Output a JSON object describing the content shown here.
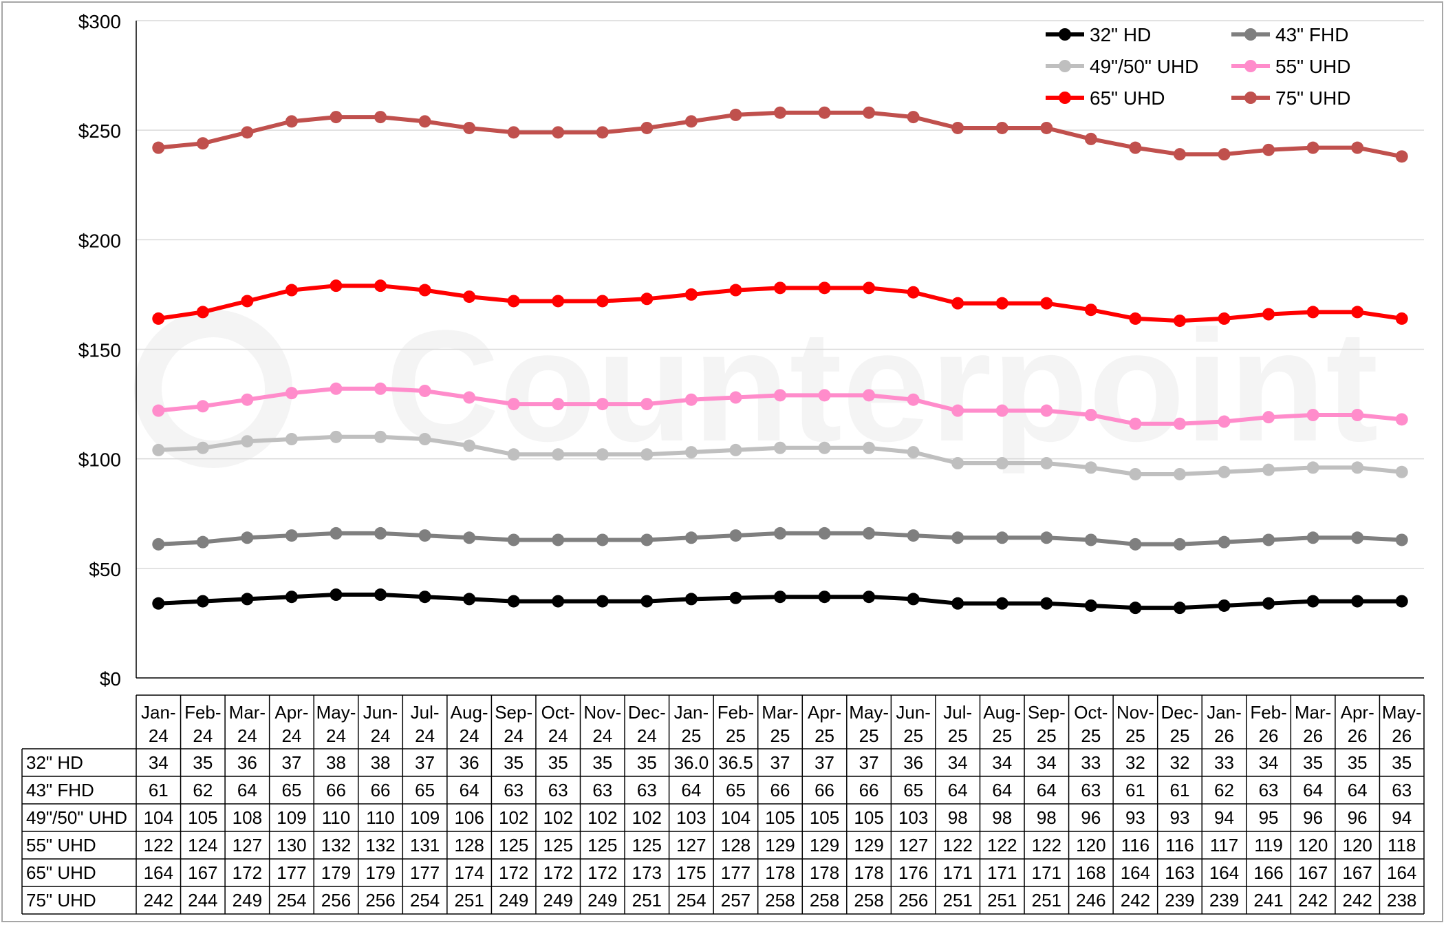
{
  "chart_data": {
    "type": "line",
    "title": "",
    "xlabel": "",
    "ylabel": "",
    "ylim": [
      0,
      300
    ],
    "y_ticks": [
      "$0",
      "$50",
      "$100",
      "$150",
      "$200",
      "$250",
      "$300"
    ],
    "y_tick_values": [
      0,
      50,
      100,
      150,
      200,
      250,
      300
    ],
    "grid": "horizontal",
    "legend_position": "top-right",
    "watermark": "Counterpoint",
    "categories": [
      [
        "Jan-",
        "24"
      ],
      [
        "Feb-",
        "24"
      ],
      [
        "Mar-",
        "24"
      ],
      [
        "Apr-",
        "24"
      ],
      [
        "May-",
        "24"
      ],
      [
        "Jun-",
        "24"
      ],
      [
        "Jul-",
        "24"
      ],
      [
        "Aug-",
        "24"
      ],
      [
        "Sep-",
        "24"
      ],
      [
        "Oct-",
        "24"
      ],
      [
        "Nov-",
        "24"
      ],
      [
        "Dec-",
        "24"
      ],
      [
        "Jan-",
        "25"
      ],
      [
        "Feb-",
        "25"
      ],
      [
        "Mar-",
        "25"
      ],
      [
        "Apr-",
        "25"
      ],
      [
        "May-",
        "25"
      ],
      [
        "Jun-",
        "25"
      ],
      [
        "Jul-",
        "25"
      ],
      [
        "Aug-",
        "25"
      ],
      [
        "Sep-",
        "25"
      ],
      [
        "Oct-",
        "25"
      ],
      [
        "Nov-",
        "25"
      ],
      [
        "Dec-",
        "25"
      ],
      [
        "Jan-",
        "26"
      ],
      [
        "Feb-",
        "26"
      ],
      [
        "Mar-",
        "26"
      ],
      [
        "Apr-",
        "26"
      ],
      [
        "May-",
        "26"
      ]
    ],
    "series": [
      {
        "name": "32\" HD",
        "color": "#000000",
        "values": [
          34,
          35,
          36,
          37,
          38,
          38,
          37,
          36,
          35,
          35,
          35,
          35,
          36,
          36.5,
          37,
          37,
          37,
          36,
          34,
          34,
          34,
          33,
          32,
          32,
          33,
          34,
          35,
          35,
          35
        ],
        "labels": [
          "34",
          "35",
          "36",
          "37",
          "38",
          "38",
          "37",
          "36",
          "35",
          "35",
          "35",
          "35",
          "36.0",
          "36.5",
          "37",
          "37",
          "37",
          "36",
          "34",
          "34",
          "34",
          "33",
          "32",
          "32",
          "33",
          "34",
          "35",
          "35",
          "35"
        ]
      },
      {
        "name": "43\" FHD",
        "color": "#7f7f7f",
        "values": [
          61,
          62,
          64,
          65,
          66,
          66,
          65,
          64,
          63,
          63,
          63,
          63,
          64,
          65,
          66,
          66,
          66,
          65,
          64,
          64,
          64,
          63,
          61,
          61,
          62,
          63,
          64,
          64,
          63
        ],
        "labels": [
          "61",
          "62",
          "64",
          "65",
          "66",
          "66",
          "65",
          "64",
          "63",
          "63",
          "63",
          "63",
          "64",
          "65",
          "66",
          "66",
          "66",
          "65",
          "64",
          "64",
          "64",
          "63",
          "61",
          "61",
          "62",
          "63",
          "64",
          "64",
          "63"
        ]
      },
      {
        "name": "49\"/50\" UHD",
        "color": "#bfbfbf",
        "values": [
          104,
          105,
          108,
          109,
          110,
          110,
          109,
          106,
          102,
          102,
          102,
          102,
          103,
          104,
          105,
          105,
          105,
          103,
          98,
          98,
          98,
          96,
          93,
          93,
          94,
          95,
          96,
          96,
          94
        ],
        "labels": [
          "104",
          "105",
          "108",
          "109",
          "110",
          "110",
          "109",
          "106",
          "102",
          "102",
          "102",
          "102",
          "103",
          "104",
          "105",
          "105",
          "105",
          "103",
          "98",
          "98",
          "98",
          "96",
          "93",
          "93",
          "94",
          "95",
          "96",
          "96",
          "94"
        ]
      },
      {
        "name": "55\" UHD",
        "color": "#ff8ccb",
        "values": [
          122,
          124,
          127,
          130,
          132,
          132,
          131,
          128,
          125,
          125,
          125,
          125,
          127,
          128,
          129,
          129,
          129,
          127,
          122,
          122,
          122,
          120,
          116,
          116,
          117,
          119,
          120,
          120,
          118
        ],
        "labels": [
          "122",
          "124",
          "127",
          "130",
          "132",
          "132",
          "131",
          "128",
          "125",
          "125",
          "125",
          "125",
          "127",
          "128",
          "129",
          "129",
          "129",
          "127",
          "122",
          "122",
          "122",
          "120",
          "116",
          "116",
          "117",
          "119",
          "120",
          "120",
          "118"
        ]
      },
      {
        "name": "65\" UHD",
        "color": "#ff0000",
        "values": [
          164,
          167,
          172,
          177,
          179,
          179,
          177,
          174,
          172,
          172,
          172,
          173,
          175,
          177,
          178,
          178,
          178,
          176,
          171,
          171,
          171,
          168,
          164,
          163,
          164,
          166,
          167,
          167,
          164
        ],
        "labels": [
          "164",
          "167",
          "172",
          "177",
          "179",
          "179",
          "177",
          "174",
          "172",
          "172",
          "172",
          "173",
          "175",
          "177",
          "178",
          "178",
          "178",
          "176",
          "171",
          "171",
          "171",
          "168",
          "164",
          "163",
          "164",
          "166",
          "167",
          "167",
          "164"
        ]
      },
      {
        "name": "75\" UHD",
        "color": "#c0504d",
        "values": [
          242,
          244,
          249,
          254,
          256,
          256,
          254,
          251,
          249,
          249,
          249,
          251,
          254,
          257,
          258,
          258,
          258,
          256,
          251,
          251,
          251,
          246,
          242,
          239,
          239,
          241,
          242,
          242,
          238
        ],
        "labels": [
          "242",
          "244",
          "249",
          "254",
          "256",
          "256",
          "254",
          "251",
          "249",
          "249",
          "249",
          "251",
          "254",
          "257",
          "258",
          "258",
          "258",
          "256",
          "251",
          "251",
          "251",
          "246",
          "242",
          "239",
          "239",
          "241",
          "242",
          "242",
          "238"
        ]
      }
    ]
  }
}
